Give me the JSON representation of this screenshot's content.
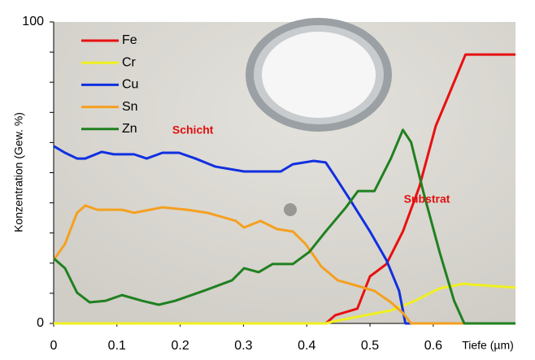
{
  "chart_data": {
    "type": "line",
    "xlabel": "Tiefe (µm)",
    "ylabel": "Konzentration (Gew. %)",
    "xlim": [
      0,
      0.73
    ],
    "xticks": [
      0,
      0.1,
      0.2,
      0.3,
      0.4,
      0.5,
      0.6
    ],
    "ylim": [
      0,
      100
    ],
    "yticks": [
      0,
      100
    ],
    "yminorticks": [
      10,
      20,
      30,
      40,
      50,
      60,
      70,
      80,
      90
    ],
    "annotations": [
      {
        "text": "Schicht",
        "x": 0.22,
        "y": 64,
        "color": "#e01010"
      },
      {
        "text": "Substrat",
        "x": 0.59,
        "y": 41,
        "color": "#e01010"
      }
    ],
    "series": [
      {
        "name": "Fe",
        "color": "#e81010",
        "x": [
          0,
          0.43,
          0.445,
          0.48,
          0.5,
          0.526,
          0.552,
          0.578,
          0.604,
          0.623,
          0.651,
          0.73
        ],
        "values": [
          0,
          0,
          2.7,
          4.9,
          15.6,
          19.7,
          30.5,
          45.3,
          65.5,
          75,
          89.2,
          89.2
        ]
      },
      {
        "name": "Cr",
        "color": "#f0f020",
        "x": [
          0,
          0.43,
          0.45,
          0.5,
          0.533,
          0.571,
          0.61,
          0.649,
          0.66,
          0.73
        ],
        "values": [
          0,
          0,
          1,
          3,
          4.3,
          7.5,
          11.6,
          13.2,
          12.9,
          11.9
        ]
      },
      {
        "name": "Cu",
        "color": "#1030e0",
        "x": [
          0,
          0.018,
          0.037,
          0.05,
          0.076,
          0.095,
          0.127,
          0.147,
          0.172,
          0.198,
          0.224,
          0.256,
          0.301,
          0.359,
          0.378,
          0.411,
          0.43,
          0.443,
          0.468,
          0.5,
          0.526,
          0.546,
          0.556,
          0.73
        ],
        "values": [
          58.8,
          56.6,
          54.7,
          54.7,
          56.9,
          56.1,
          56.1,
          54.7,
          56.6,
          56.6,
          54.7,
          52,
          50.4,
          50.4,
          52.8,
          53.9,
          53.4,
          49.3,
          41.2,
          30.5,
          21,
          10.8,
          0,
          0
        ]
      },
      {
        "name": "Sn",
        "color": "#f5a020",
        "x": [
          0,
          0.018,
          0.037,
          0.05,
          0.069,
          0.108,
          0.127,
          0.172,
          0.211,
          0.243,
          0.288,
          0.301,
          0.327,
          0.353,
          0.378,
          0.398,
          0.423,
          0.449,
          0.481,
          0.507,
          0.533,
          0.552,
          0.565,
          0.73
        ],
        "values": [
          21,
          26.4,
          36.7,
          39.1,
          37.7,
          37.7,
          36.7,
          38.5,
          37.7,
          36.7,
          34,
          31.8,
          34,
          31.3,
          30.5,
          26.4,
          18.9,
          14.3,
          12.4,
          10.8,
          7,
          3.5,
          0,
          0
        ]
      },
      {
        "name": "Zn",
        "color": "#208020",
        "x": [
          0,
          0.018,
          0.037,
          0.057,
          0.082,
          0.108,
          0.14,
          0.166,
          0.192,
          0.237,
          0.282,
          0.301,
          0.324,
          0.346,
          0.378,
          0.404,
          0.43,
          0.462,
          0.481,
          0.507,
          0.533,
          0.552,
          0.565,
          0.584,
          0.61,
          0.633,
          0.649,
          0.73
        ],
        "values": [
          21.6,
          18.3,
          10.2,
          7,
          7.5,
          9.4,
          7.5,
          6.2,
          7.5,
          10.8,
          14.3,
          18.3,
          17,
          19.7,
          19.7,
          23.7,
          30.5,
          38.5,
          43.9,
          43.9,
          54.7,
          64.2,
          60.1,
          43.9,
          23.7,
          7.5,
          0,
          0
        ]
      }
    ]
  }
}
